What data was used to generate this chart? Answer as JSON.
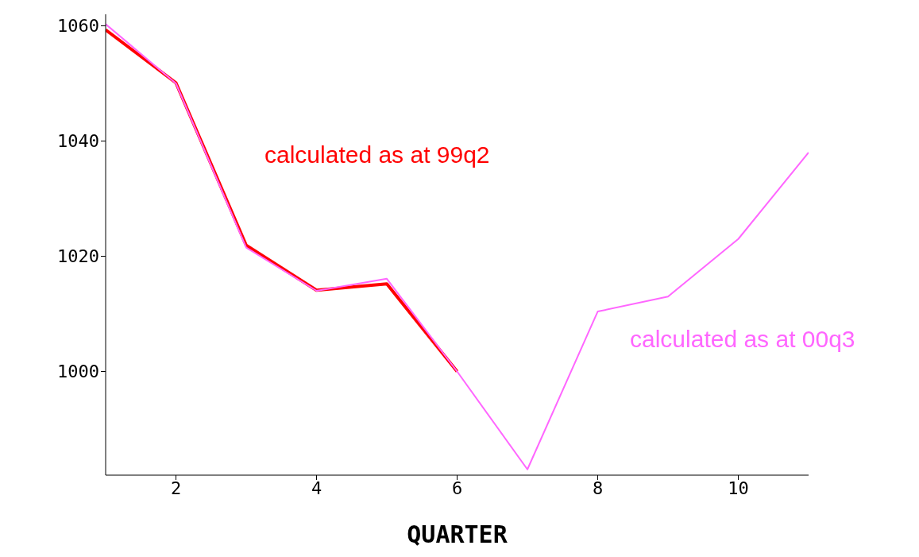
{
  "chart_data": {
    "type": "line",
    "xlabel": "QUARTER",
    "x": [
      1,
      2,
      3,
      4,
      5,
      6,
      7,
      8,
      9,
      10,
      11
    ],
    "series": [
      {
        "name": "calculated as at 99q2",
        "color": "#ff0000",
        "values": [
          1059.3,
          1050.1,
          1021.9,
          1014.1,
          1015.2,
          1000,
          null,
          null,
          null,
          null,
          null
        ]
      },
      {
        "name": "calculated as at 00q3",
        "color": "#ff66ff",
        "values": [
          1060.3,
          1050,
          1021.5,
          1014,
          1016.1,
          1000,
          983,
          1010.4,
          1013,
          1023,
          1038
        ]
      }
    ],
    "xlim": [
      1,
      11
    ],
    "xticks": [
      2,
      4,
      6,
      8,
      10
    ],
    "ylim": [
      982,
      1062
    ],
    "yticks": [
      1000,
      1020,
      1040,
      1060
    ],
    "grid": false,
    "legend": false,
    "marker": "none",
    "line_style": "solid"
  }
}
